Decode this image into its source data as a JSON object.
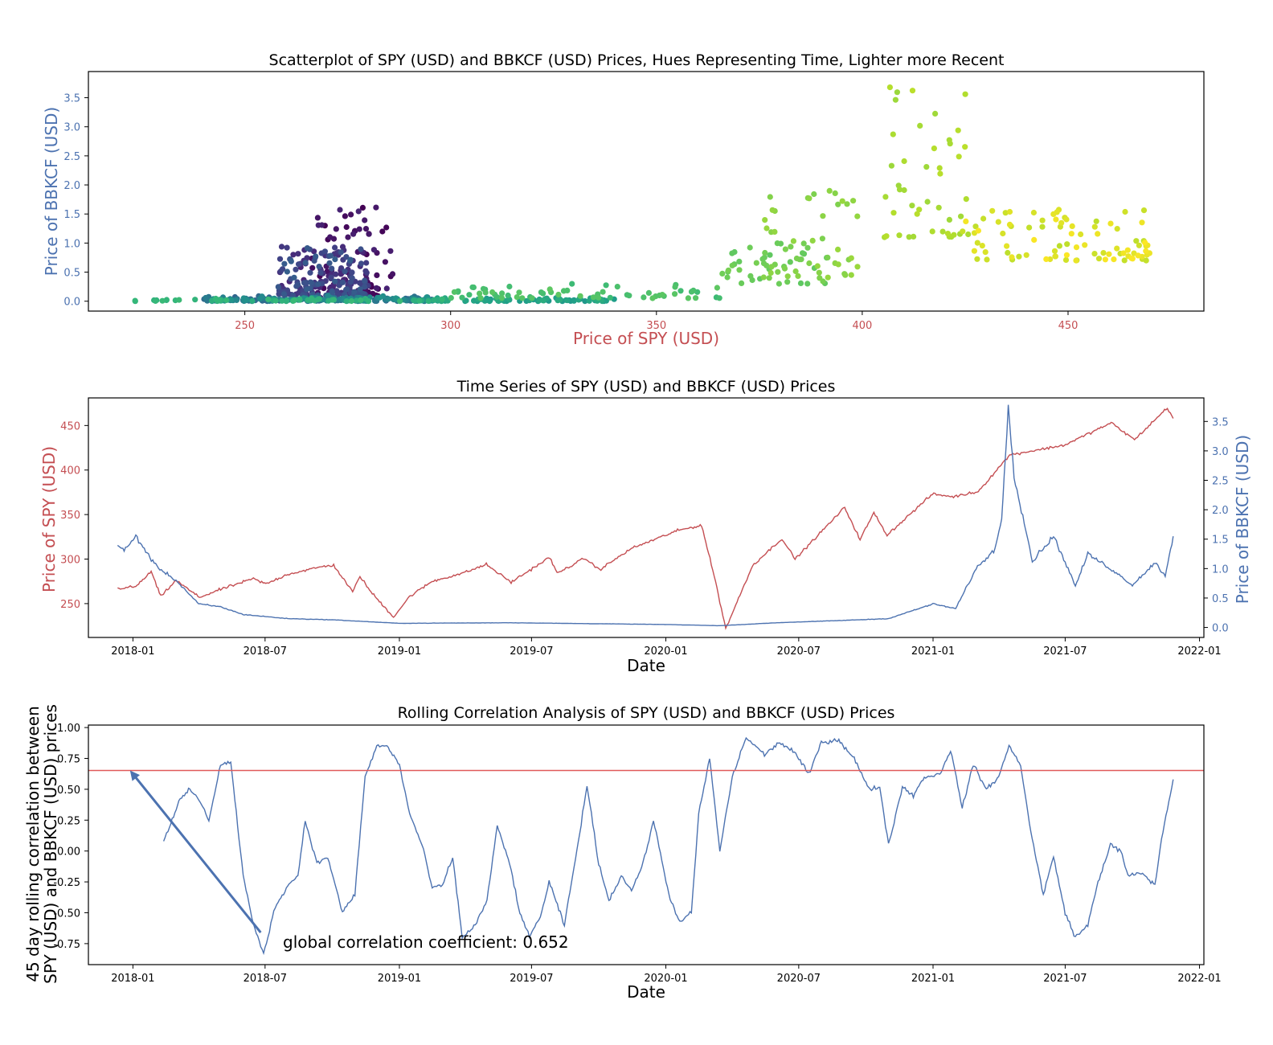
{
  "colors": {
    "spy": "#c44e52",
    "bbkcf": "#4c72b0",
    "axis": "#000000",
    "corr_line": "#4c72b0",
    "global_line": "#e05a5a"
  },
  "chart_data": [
    {
      "type": "scatter",
      "title": "Scatterplot of SPY (USD) and BBKCF (USD) Prices, Hues Representing Time, Lighter more Recent",
      "xlabel": "Price of SPY (USD)",
      "ylabel": "Price of BBKCF (USD)",
      "xlim": [
        212,
        483
      ],
      "ylim": [
        -0.17,
        3.95
      ],
      "xticks": [
        250,
        300,
        350,
        400,
        450
      ],
      "yticks": [
        0.0,
        0.5,
        1.0,
        1.5,
        2.0,
        2.5,
        3.0,
        3.5
      ],
      "colormap": "viridis",
      "phases": [
        {
          "t0": 0.0,
          "t1": 0.3,
          "spy": [
            [
              267,
              0.8
            ],
            [
              258,
              0.3
            ],
            [
              263,
              0.25
            ],
            [
              275,
              0.45
            ],
            [
              260,
              0.7
            ],
            [
              268,
              0.5
            ]
          ],
          "bbkcf": [
            [
              267,
              1.5
            ],
            [
              265,
              1.48
            ],
            [
              272,
              1.6
            ],
            [
              280,
              1.25
            ],
            [
              283,
              1.1
            ],
            [
              276,
              1.3
            ],
            [
              270,
              1.52
            ],
            [
              262,
              1.2
            ],
            [
              266,
              0.95
            ],
            [
              275,
              0.6
            ],
            [
              272,
              0.85
            ],
            [
              269,
              0.3
            ]
          ]
        },
        {
          "t0": 0.3,
          "t1": 0.5,
          "spy": [
            [
              270,
              0.2
            ],
            [
              268,
              0.12
            ],
            [
              275,
              0.1
            ],
            [
              282,
              0.08
            ],
            [
              287,
              0.06
            ],
            [
              292,
              0.05
            ],
            [
              298,
              0.04
            ]
          ]
        }
      ],
      "series_segments": [
        {
          "t": [
            0.0,
            0.1
          ],
          "x": [
            266,
            286
          ],
          "y": [
            0.02,
            1.62
          ]
        },
        {
          "t": [
            0.1,
            0.3
          ],
          "x": [
            258,
            280
          ],
          "y": [
            0.1,
            0.95
          ]
        },
        {
          "t": [
            0.3,
            0.52
          ],
          "x": [
            240,
            296
          ],
          "y": [
            0.0,
            0.18
          ]
        },
        {
          "t": [
            0.52,
            0.62
          ],
          "x": [
            290,
            340
          ],
          "y": [
            0.0,
            0.12
          ]
        },
        {
          "t": [
            0.62,
            0.68
          ],
          "x": [
            222,
            300
          ],
          "y": [
            0.0,
            0.1
          ]
        },
        {
          "t": [
            0.68,
            0.75
          ],
          "x": [
            300,
            366
          ],
          "y": [
            0.05,
            0.3
          ]
        },
        {
          "t": [
            0.75,
            0.8
          ],
          "x": [
            366,
            392
          ],
          "y": [
            0.3,
            1.0
          ]
        },
        {
          "t": [
            0.8,
            0.85
          ],
          "x": [
            376,
            400
          ],
          "y": [
            0.4,
            1.9
          ]
        },
        {
          "t": [
            0.85,
            0.9
          ],
          "x": [
            404,
            426
          ],
          "y": [
            1.1,
            3.78
          ]
        },
        {
          "t": [
            0.9,
            1.0
          ],
          "x": [
            424,
            470
          ],
          "y": [
            0.7,
            1.58
          ]
        }
      ]
    },
    {
      "type": "line",
      "title": "Time Series of SPY (USD) and BBKCF (USD) Prices",
      "xlabel": "Date",
      "ylabel_left": "Price of SPY (USD)",
      "ylabel_right": "Price of BBKCF (USD)",
      "xlim": [
        "2017-11-01",
        "2022-01-07"
      ],
      "ylim_left": [
        212,
        481
      ],
      "ylim_right": [
        -0.17,
        3.9
      ],
      "xticks": [
        "2018-01",
        "2018-07",
        "2019-01",
        "2019-07",
        "2020-01",
        "2020-07",
        "2021-01",
        "2021-07",
        "2022-01"
      ],
      "yticks_left": [
        250,
        300,
        350,
        400,
        450
      ],
      "yticks_right": [
        0.0,
        0.5,
        1.0,
        1.5,
        2.0,
        2.5,
        3.0,
        3.5
      ],
      "series": [
        {
          "name": "SPY (USD)",
          "axis": "left",
          "points": [
            [
              "2017-12-11",
              267
            ],
            [
              "2018-01-05",
              269
            ],
            [
              "2018-01-26",
              286
            ],
            [
              "2018-02-08",
              258
            ],
            [
              "2018-03-01",
              276
            ],
            [
              "2018-04-02",
              257
            ],
            [
              "2018-05-01",
              266
            ],
            [
              "2018-06-15",
              278
            ],
            [
              "2018-07-02",
              272
            ],
            [
              "2018-08-01",
              283
            ],
            [
              "2018-09-20",
              292
            ],
            [
              "2018-10-03",
              293
            ],
            [
              "2018-10-29",
              263
            ],
            [
              "2018-11-08",
              281
            ],
            [
              "2018-11-23",
              263
            ],
            [
              "2018-12-24",
              235
            ],
            [
              "2019-01-15",
              258
            ],
            [
              "2019-02-15",
              275
            ],
            [
              "2019-04-01",
              285
            ],
            [
              "2019-04-30",
              294
            ],
            [
              "2019-06-03",
              274
            ],
            [
              "2019-07-26",
              302
            ],
            [
              "2019-08-05",
              284
            ],
            [
              "2019-09-12",
              301
            ],
            [
              "2019-10-02",
              288
            ],
            [
              "2019-11-15",
              312
            ],
            [
              "2020-01-17",
              332
            ],
            [
              "2020-02-19",
              338
            ],
            [
              "2020-03-09",
              275
            ],
            [
              "2020-03-23",
              222
            ],
            [
              "2020-04-29",
              293
            ],
            [
              "2020-06-08",
              323
            ],
            [
              "2020-06-26",
              300
            ],
            [
              "2020-09-02",
              358
            ],
            [
              "2020-09-23",
              322
            ],
            [
              "2020-10-12",
              352
            ],
            [
              "2020-10-30",
              327
            ],
            [
              "2020-12-31",
              373
            ],
            [
              "2021-01-29",
              370
            ],
            [
              "2021-03-04",
              376
            ],
            [
              "2021-04-16",
              417
            ],
            [
              "2021-06-30",
              428
            ],
            [
              "2021-09-02",
              453
            ],
            [
              "2021-10-04",
              434
            ],
            [
              "2021-11-18",
              470
            ],
            [
              "2021-11-26",
              458
            ]
          ]
        },
        {
          "name": "BBKCF (USD)",
          "axis": "right",
          "points": [
            [
              "2017-12-11",
              1.4
            ],
            [
              "2017-12-20",
              1.3
            ],
            [
              "2018-01-05",
              1.55
            ],
            [
              "2018-02-01",
              1.05
            ],
            [
              "2018-03-01",
              0.8
            ],
            [
              "2018-04-01",
              0.4
            ],
            [
              "2018-05-01",
              0.35
            ],
            [
              "2018-06-01",
              0.22
            ],
            [
              "2018-08-01",
              0.15
            ],
            [
              "2018-10-01",
              0.13
            ],
            [
              "2019-01-01",
              0.07
            ],
            [
              "2019-06-01",
              0.08
            ],
            [
              "2019-12-31",
              0.05
            ],
            [
              "2020-03-15",
              0.03
            ],
            [
              "2020-06-01",
              0.08
            ],
            [
              "2020-09-01",
              0.12
            ],
            [
              "2020-11-01",
              0.15
            ],
            [
              "2021-01-01",
              0.4
            ],
            [
              "2021-02-01",
              0.32
            ],
            [
              "2021-03-01",
              1.0
            ],
            [
              "2021-03-25",
              1.3
            ],
            [
              "2021-04-05",
              1.8
            ],
            [
              "2021-04-14",
              3.78
            ],
            [
              "2021-04-22",
              2.6
            ],
            [
              "2021-05-10",
              1.55
            ],
            [
              "2021-05-17",
              1.12
            ],
            [
              "2021-06-01",
              1.35
            ],
            [
              "2021-06-15",
              1.55
            ],
            [
              "2021-07-05",
              1.0
            ],
            [
              "2021-07-15",
              0.7
            ],
            [
              "2021-08-01",
              1.25
            ],
            [
              "2021-09-01",
              1.0
            ],
            [
              "2021-10-01",
              0.72
            ],
            [
              "2021-11-01",
              1.1
            ],
            [
              "2021-11-15",
              0.88
            ],
            [
              "2021-11-26",
              1.55
            ]
          ]
        }
      ]
    },
    {
      "type": "line",
      "title": "Rolling Correlation Analysis of SPY (USD) and BBKCF (USD) Prices",
      "xlabel": "Date",
      "ylabel": "45 day rolling correlation between\nSPY (USD) and BBKCF (USD) prices",
      "xlim": [
        "2017-11-01",
        "2022-01-07"
      ],
      "ylim": [
        -0.92,
        1.02
      ],
      "xticks": [
        "2018-01",
        "2018-07",
        "2019-01",
        "2019-07",
        "2020-01",
        "2020-07",
        "2021-01",
        "2021-07",
        "2022-01"
      ],
      "yticks": [
        -0.75,
        -0.5,
        -0.25,
        0.0,
        0.25,
        0.5,
        0.75,
        1.0
      ],
      "global_correlation": 0.652,
      "annotation": "global correlation coefficient: 0.652",
      "series": [
        {
          "points": [
            [
              "2018-02-12",
              0.08
            ],
            [
              "2018-02-20",
              0.2
            ],
            [
              "2018-03-05",
              0.4
            ],
            [
              "2018-03-20",
              0.5
            ],
            [
              "2018-04-01",
              0.42
            ],
            [
              "2018-04-15",
              0.25
            ],
            [
              "2018-05-01",
              0.7
            ],
            [
              "2018-05-15",
              0.72
            ],
            [
              "2018-06-01",
              -0.2
            ],
            [
              "2018-06-15",
              -0.6
            ],
            [
              "2018-06-29",
              -0.83
            ],
            [
              "2018-07-15",
              -0.45
            ],
            [
              "2018-08-01",
              -0.28
            ],
            [
              "2018-08-15",
              -0.2
            ],
            [
              "2018-08-25",
              0.25
            ],
            [
              "2018-09-10",
              -0.1
            ],
            [
              "2018-09-25",
              -0.05
            ],
            [
              "2018-10-15",
              -0.5
            ],
            [
              "2018-11-01",
              -0.35
            ],
            [
              "2018-11-15",
              0.6
            ],
            [
              "2018-12-01",
              0.85
            ],
            [
              "2018-12-15",
              0.85
            ],
            [
              "2019-01-01",
              0.7
            ],
            [
              "2019-01-15",
              0.3
            ],
            [
              "2019-02-01",
              0.05
            ],
            [
              "2019-02-15",
              -0.3
            ],
            [
              "2019-03-01",
              -0.28
            ],
            [
              "2019-03-15",
              -0.05
            ],
            [
              "2019-03-28",
              -0.7
            ],
            [
              "2019-04-15",
              -0.6
            ],
            [
              "2019-05-01",
              -0.4
            ],
            [
              "2019-05-15",
              0.2
            ],
            [
              "2019-06-01",
              -0.1
            ],
            [
              "2019-06-15",
              -0.5
            ],
            [
              "2019-06-28",
              -0.7
            ],
            [
              "2019-07-15",
              -0.5
            ],
            [
              "2019-07-25",
              -0.25
            ],
            [
              "2019-08-15",
              -0.6
            ],
            [
              "2019-09-01",
              0.0
            ],
            [
              "2019-09-15",
              0.53
            ],
            [
              "2019-10-01",
              -0.1
            ],
            [
              "2019-10-15",
              -0.4
            ],
            [
              "2019-11-01",
              -0.2
            ],
            [
              "2019-11-15",
              -0.32
            ],
            [
              "2019-12-01",
              -0.1
            ],
            [
              "2019-12-15",
              0.25
            ],
            [
              "2020-01-05",
              -0.35
            ],
            [
              "2020-01-20",
              -0.58
            ],
            [
              "2020-02-05",
              -0.5
            ],
            [
              "2020-02-15",
              0.3
            ],
            [
              "2020-03-01",
              0.75
            ],
            [
              "2020-03-15",
              0.0
            ],
            [
              "2020-04-01",
              0.6
            ],
            [
              "2020-04-20",
              0.92
            ],
            [
              "2020-05-15",
              0.78
            ],
            [
              "2020-06-05",
              0.88
            ],
            [
              "2020-06-25",
              0.8
            ],
            [
              "2020-07-15",
              0.62
            ],
            [
              "2020-08-01",
              0.88
            ],
            [
              "2020-08-25",
              0.9
            ],
            [
              "2020-09-15",
              0.75
            ],
            [
              "2020-10-05",
              0.5
            ],
            [
              "2020-10-20",
              0.52
            ],
            [
              "2020-11-01",
              0.05
            ],
            [
              "2020-11-20",
              0.52
            ],
            [
              "2020-12-05",
              0.45
            ],
            [
              "2020-12-20",
              0.6
            ],
            [
              "2021-01-10",
              0.62
            ],
            [
              "2021-01-25",
              0.82
            ],
            [
              "2021-02-10",
              0.35
            ],
            [
              "2021-02-25",
              0.7
            ],
            [
              "2021-03-15",
              0.5
            ],
            [
              "2021-04-01",
              0.6
            ],
            [
              "2021-04-15",
              0.85
            ],
            [
              "2021-05-01",
              0.7
            ],
            [
              "2021-05-15",
              0.15
            ],
            [
              "2021-06-01",
              -0.35
            ],
            [
              "2021-06-15",
              -0.05
            ],
            [
              "2021-07-01",
              -0.5
            ],
            [
              "2021-07-15",
              -0.7
            ],
            [
              "2021-08-01",
              -0.6
            ],
            [
              "2021-08-15",
              -0.25
            ],
            [
              "2021-09-01",
              0.05
            ],
            [
              "2021-09-15",
              0.0
            ],
            [
              "2021-09-25",
              -0.2
            ],
            [
              "2021-10-15",
              -0.18
            ],
            [
              "2021-11-01",
              -0.28
            ],
            [
              "2021-11-10",
              0.1
            ],
            [
              "2021-11-26",
              0.58
            ]
          ]
        }
      ]
    }
  ]
}
